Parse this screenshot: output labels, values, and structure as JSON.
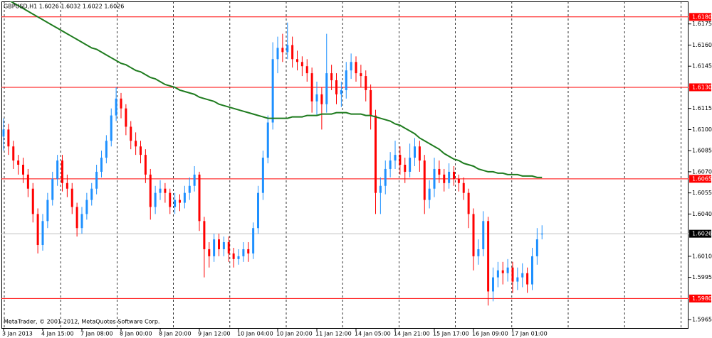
{
  "chart_data": {
    "type": "candlestick",
    "title": "GBPUSD,H1 1.6026 1.6032 1.6022 1.6026",
    "footer": "MetaTrader, © 2001-2012, MetaQuotes Software Corp.",
    "up_color": "#1e90ff",
    "down_color": "#ff0000",
    "categories": [
      "3 Jan 2013",
      null,
      null,
      null,
      null,
      null,
      null,
      null,
      "4 Jan 15:00",
      null,
      null,
      null,
      null,
      null,
      null,
      null,
      "7 Jan 08:00",
      null,
      null,
      null,
      null,
      null,
      null,
      null,
      "8 Jan 00:00",
      null,
      null,
      null,
      null,
      null,
      null,
      null,
      "8 Jan 20:00",
      null,
      null,
      null,
      null,
      null,
      null,
      null,
      "9 Jan 12:00",
      null,
      null,
      null,
      null,
      null,
      null,
      null,
      "10 Jan 04:00",
      null,
      null,
      null,
      null,
      null,
      null,
      null,
      "10 Jan 20:00",
      null,
      null,
      null,
      null,
      null,
      null,
      null,
      "11 Jan 12:00",
      null,
      null,
      null,
      null,
      null,
      null,
      null,
      "14 Jan 05:00",
      null,
      null,
      null,
      null,
      null,
      null,
      null,
      "14 Jan 21:00",
      null,
      null,
      null,
      null,
      null,
      null,
      null,
      "15 Jan 17:00",
      null,
      null,
      null,
      null,
      null,
      null,
      null,
      "16 Jan 09:00",
      null,
      null,
      null,
      null,
      null,
      null,
      null,
      "17 Jan 01:00",
      null,
      null,
      null,
      null,
      null,
      null
    ],
    "open": [
      1.6095,
      1.61,
      1.6088,
      1.6078,
      1.6075,
      1.6068,
      1.6058,
      1.604,
      1.6018,
      1.6035,
      1.605,
      1.6065,
      1.6078,
      1.6062,
      1.6058,
      1.6045,
      1.603,
      1.604,
      1.605,
      1.6058,
      1.607,
      1.608,
      1.6092,
      1.611,
      1.6122,
      1.6115,
      1.6102,
      1.6092,
      1.6088,
      1.6082,
      1.6068,
      1.6045,
      1.6055,
      1.6058,
      1.6055,
      1.6045,
      1.605,
      1.6048,
      1.6055,
      1.606,
      1.6068,
      1.6035,
      1.6015,
      1.601,
      1.6022,
      1.6015,
      1.602,
      1.6012,
      1.6008,
      1.601,
      1.6015,
      1.6012,
      1.603,
      1.6055,
      1.608,
      1.6105,
      1.615,
      1.6158,
      1.6155,
      1.616,
      1.615,
      1.6148,
      1.6145,
      1.614,
      1.612,
      1.6125,
      1.6118,
      1.614,
      1.6135,
      1.6125,
      1.6128,
      1.6142,
      1.6148,
      1.614,
      1.6138,
      1.6128,
      1.611,
      1.6055,
      1.606,
      1.6072,
      1.6078,
      1.6082,
      1.6075,
      1.607,
      1.608,
      1.6088,
      1.6078,
      1.605,
      1.6058,
      1.6072,
      1.6068,
      1.6062,
      1.607,
      1.6065,
      1.6062,
      1.6055,
      1.604,
      1.601,
      1.6015,
      1.6035,
      1.5985,
      1.5995,
      1.6,
      1.5998,
      1.6002,
      1.5992,
      1.5995,
      1.5998,
      1.599,
      1.601,
      1.6026
    ],
    "high": [
      1.6108,
      1.6104,
      1.6092,
      1.6082,
      1.608,
      1.6072,
      1.6062,
      1.6044,
      1.604,
      1.6055,
      1.607,
      1.6082,
      1.6082,
      1.6068,
      1.6062,
      1.6048,
      1.6045,
      1.6055,
      1.6062,
      1.6075,
      1.6085,
      1.6096,
      1.6115,
      1.613,
      1.6126,
      1.6118,
      1.6106,
      1.6098,
      1.6092,
      1.6086,
      1.6072,
      1.606,
      1.6064,
      1.6062,
      1.6058,
      1.6055,
      1.6054,
      1.606,
      1.6066,
      1.6074,
      1.607,
      1.6038,
      1.602,
      1.6026,
      1.6026,
      1.6024,
      1.6024,
      1.6016,
      1.6015,
      1.602,
      1.602,
      1.6034,
      1.606,
      1.6085,
      1.611,
      1.6162,
      1.6166,
      1.6168,
      1.6176,
      1.6166,
      1.6156,
      1.6152,
      1.615,
      1.6144,
      1.6134,
      1.613,
      1.6168,
      1.6146,
      1.614,
      1.6134,
      1.6148,
      1.6154,
      1.6152,
      1.6146,
      1.6142,
      1.6132,
      1.6114,
      1.6066,
      1.6078,
      1.6084,
      1.6092,
      1.6088,
      1.608,
      1.609,
      1.6094,
      1.6092,
      1.6082,
      1.6064,
      1.608,
      1.6078,
      1.6072,
      1.6076,
      1.6074,
      1.6068,
      1.6066,
      1.6058,
      1.6044,
      1.6022,
      1.6042,
      1.6038,
      1.6002,
      1.6006,
      1.6006,
      1.6008,
      1.6006,
      1.6002,
      1.6005,
      1.6002,
      1.6016,
      1.603,
      1.6032
    ],
    "low": [
      1.6085,
      1.6082,
      1.6072,
      1.6068,
      1.6062,
      1.6052,
      1.6034,
      1.6012,
      1.6014,
      1.603,
      1.6046,
      1.606,
      1.6056,
      1.6052,
      1.604,
      1.6024,
      1.6026,
      1.6036,
      1.6046,
      1.6054,
      1.6066,
      1.6076,
      1.6088,
      1.6106,
      1.6108,
      1.6096,
      1.6086,
      1.6082,
      1.6076,
      1.6062,
      1.6036,
      1.604,
      1.605,
      1.6048,
      1.604,
      1.604,
      1.6042,
      1.6044,
      1.605,
      1.6056,
      1.6028,
      1.5995,
      1.6002,
      1.6006,
      1.601,
      1.601,
      1.6006,
      1.6002,
      1.6004,
      1.6006,
      1.6006,
      1.6008,
      1.6026,
      1.605,
      1.6076,
      1.61,
      1.614,
      1.6148,
      1.615,
      1.6144,
      1.6142,
      1.6138,
      1.6134,
      1.6112,
      1.611,
      1.61,
      1.6112,
      1.6128,
      1.6118,
      1.6116,
      1.6122,
      1.6136,
      1.6134,
      1.613,
      1.612,
      1.61,
      1.604,
      1.604,
      1.6054,
      1.6066,
      1.6072,
      1.6068,
      1.6062,
      1.6066,
      1.6074,
      1.607,
      1.604,
      1.6044,
      1.6052,
      1.6062,
      1.6056,
      1.6058,
      1.606,
      1.6056,
      1.605,
      1.603,
      1.6,
      1.6004,
      1.601,
      1.5975,
      1.5978,
      1.5988,
      1.599,
      1.5992,
      1.5984,
      1.5986,
      1.5988,
      1.5984,
      1.5986,
      1.6004,
      1.6022
    ],
    "close": [
      1.61,
      1.6088,
      1.6078,
      1.6075,
      1.6068,
      1.6058,
      1.604,
      1.6018,
      1.6035,
      1.605,
      1.6065,
      1.6078,
      1.6062,
      1.6058,
      1.6045,
      1.603,
      1.604,
      1.605,
      1.6058,
      1.607,
      1.608,
      1.6092,
      1.611,
      1.6122,
      1.6115,
      1.6102,
      1.6092,
      1.6088,
      1.6082,
      1.6068,
      1.6045,
      1.6055,
      1.6058,
      1.6055,
      1.6045,
      1.605,
      1.6048,
      1.6055,
      1.606,
      1.6068,
      1.6035,
      1.6015,
      1.601,
      1.6022,
      1.6015,
      1.602,
      1.6012,
      1.6008,
      1.601,
      1.6015,
      1.6012,
      1.603,
      1.6055,
      1.608,
      1.6105,
      1.615,
      1.6158,
      1.6155,
      1.616,
      1.615,
      1.6148,
      1.6145,
      1.614,
      1.612,
      1.6125,
      1.6118,
      1.614,
      1.6135,
      1.6125,
      1.6128,
      1.6142,
      1.6148,
      1.614,
      1.6138,
      1.6128,
      1.611,
      1.6055,
      1.606,
      1.6072,
      1.6078,
      1.6082,
      1.6075,
      1.607,
      1.608,
      1.6088,
      1.6078,
      1.605,
      1.6058,
      1.6072,
      1.6068,
      1.6062,
      1.607,
      1.6065,
      1.6062,
      1.6055,
      1.604,
      1.601,
      1.6015,
      1.6035,
      1.5985,
      1.5995,
      1.6,
      1.5998,
      1.6002,
      1.5992,
      1.5995,
      1.5998,
      1.599,
      1.601,
      1.6022,
      1.6026
    ],
    "ma": {
      "color": "#1e7b1e",
      "values": [
        1.6194,
        1.6192,
        1.619,
        1.6188,
        1.6186,
        1.6184,
        1.6182,
        1.618,
        1.6178,
        1.6176,
        1.6174,
        1.6172,
        1.617,
        1.6168,
        1.6166,
        1.6164,
        1.6162,
        1.616,
        1.6158,
        1.6157,
        1.6155,
        1.6153,
        1.6151,
        1.6149,
        1.6147,
        1.6146,
        1.6144,
        1.6142,
        1.6141,
        1.6139,
        1.6137,
        1.6136,
        1.6134,
        1.6132,
        1.6131,
        1.613,
        1.6128,
        1.6127,
        1.6126,
        1.6125,
        1.6123,
        1.6122,
        1.6121,
        1.612,
        1.6118,
        1.6117,
        1.6116,
        1.6115,
        1.6114,
        1.6113,
        1.6112,
        1.6111,
        1.611,
        1.6109,
        1.6108,
        1.6108,
        1.6108,
        1.6108,
        1.6108,
        1.6109,
        1.6109,
        1.6109,
        1.611,
        1.611,
        1.611,
        1.6111,
        1.6111,
        1.6111,
        1.6112,
        1.6112,
        1.6112,
        1.6111,
        1.6111,
        1.6111,
        1.611,
        1.611,
        1.6109,
        1.6108,
        1.6107,
        1.6106,
        1.6104,
        1.6103,
        1.6101,
        1.6099,
        1.6097,
        1.6094,
        1.6092,
        1.609,
        1.6088,
        1.6086,
        1.6083,
        1.6081,
        1.6079,
        1.6078,
        1.6076,
        1.6075,
        1.6074,
        1.6072,
        1.6071,
        1.607,
        1.607,
        1.6069,
        1.6069,
        1.6068,
        1.6068,
        1.6068,
        1.6067,
        1.6067,
        1.6067,
        1.6066,
        1.6066
      ]
    },
    "levels": {
      "color": "#ff0000",
      "values": [
        {
          "value": 1.618,
          "label": "1.6180"
        },
        {
          "value": 1.613,
          "label": "1.6130"
        },
        {
          "value": 1.6065,
          "label": "1.6065"
        },
        {
          "value": 1.598,
          "label": "1.5980"
        }
      ]
    },
    "last_price": {
      "value": 1.6026,
      "label": "1.6026"
    },
    "ylim": [
      1.5959,
      1.6191
    ],
    "yticks": [
      1.6175,
      {
        "value": 1.616,
        "label": "1.6160"
      },
      1.6145,
      1.6115,
      {
        "value": 1.61,
        "label": "1.6100"
      },
      1.6085,
      {
        "value": 1.607,
        "label": "1.6070"
      },
      1.6055,
      {
        "value": 1.604,
        "label": "1.6040"
      },
      {
        "value": 1.601,
        "label": "1.6010"
      },
      1.5995,
      1.5965
    ]
  }
}
